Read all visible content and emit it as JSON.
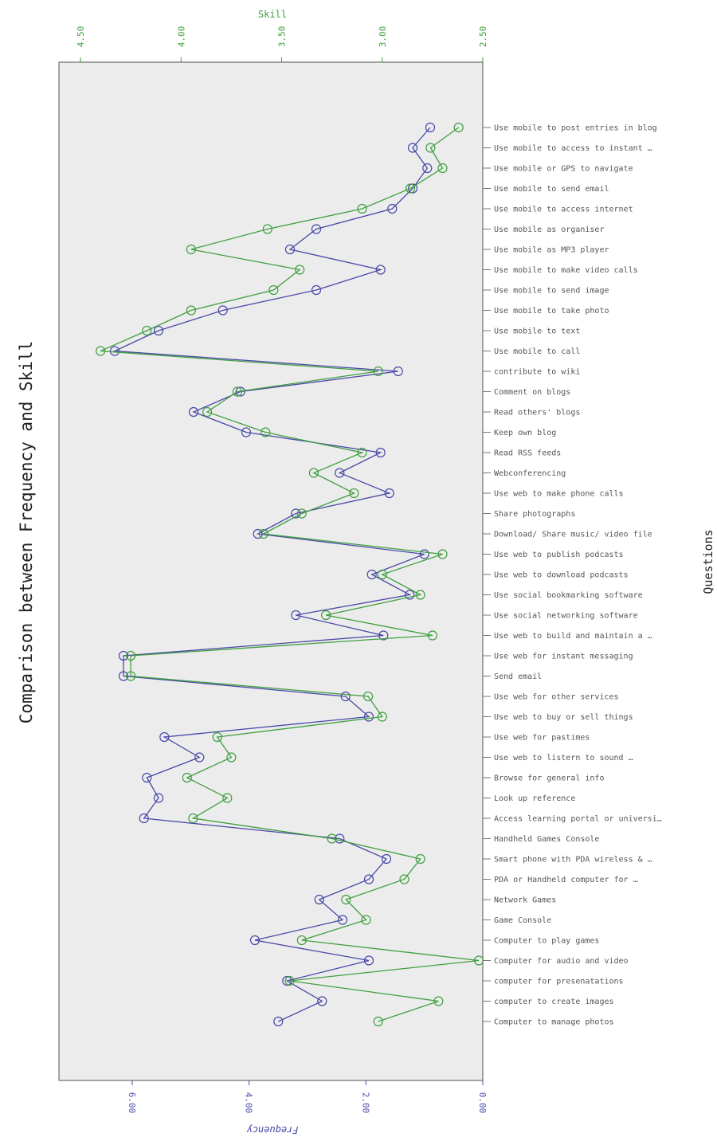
{
  "chart_data": {
    "type": "line",
    "title": "Comparison between Frequency and Skill",
    "category_axis_label": "Questions",
    "categories": [
      "Use mobile to post entries in blog",
      "Use mobile to access to instant …",
      "Use mobile or GPS to navigate",
      "Use mobile to send email",
      "Use mobile to access internet",
      "Use mobile as organiser",
      "Use mobile as MP3 player",
      "Use mobile to make video calls",
      "Use mobile to send image",
      "Use mobile to take photo",
      "Use mobile to text",
      "Use mobile to call",
      "contribute to wiki",
      "Comment on blogs",
      "Read others' blogs",
      "Keep own blog",
      "Read RSS feeds",
      "Webconferencing",
      "Use web to make phone calls",
      "Share photographs",
      "Download/ Share music/ video file",
      "Use web to publish podcasts",
      "Use web to download podcasts",
      "Use social bookmarking software",
      "Use social networking software",
      "Use web to build and maintain a …",
      "Use web for instant messaging",
      "Send email",
      "Use web for other services",
      "Use web to buy or sell things",
      "Use web for pastimes",
      "Use web to listern to sound …",
      "Browse for general info",
      "Look up reference",
      "Access learning portal or universi…",
      "Handheld Games Console",
      "Smart phone with PDA wireless & …",
      "PDA or Handheld computer for …",
      "Network Games",
      "Game Console",
      "Computer to play games",
      "Computer for audio and video",
      "computer for presenatations",
      "computer to create images",
      "Computer to manage photos"
    ],
    "series": [
      {
        "name": "Frequency",
        "axis": "Frequency",
        "color": "#4848a8",
        "values": [
          0.9,
          1.2,
          0.95,
          1.2,
          1.55,
          2.85,
          3.3,
          1.75,
          2.85,
          4.45,
          5.55,
          6.3,
          1.45,
          4.15,
          4.95,
          4.05,
          1.75,
          2.45,
          1.6,
          3.2,
          3.85,
          1.0,
          1.9,
          1.25,
          3.2,
          1.7,
          6.15,
          6.15,
          2.35,
          1.95,
          5.45,
          4.85,
          5.75,
          5.55,
          5.8,
          2.45,
          1.65,
          1.95,
          2.8,
          2.4,
          3.9,
          1.95,
          3.35,
          2.75,
          3.5
        ]
      },
      {
        "name": "Skill",
        "axis": "Skill",
        "color": "#3f9f3f",
        "values": [
          2.62,
          2.76,
          2.7,
          2.86,
          3.1,
          3.57,
          3.95,
          3.41,
          3.54,
          3.95,
          4.17,
          4.4,
          3.02,
          3.72,
          3.87,
          3.58,
          3.1,
          3.34,
          3.14,
          3.4,
          3.59,
          2.7,
          3.0,
          2.81,
          3.28,
          2.75,
          4.25,
          4.25,
          3.07,
          3.0,
          3.82,
          3.75,
          3.97,
          3.77,
          3.94,
          3.25,
          2.81,
          2.89,
          3.18,
          3.08,
          3.4,
          2.52,
          3.46,
          2.72,
          3.02
        ]
      }
    ],
    "skill_axis": {
      "label": "Skill",
      "ticks": [
        "4.50",
        "4.00",
        "3.50",
        "3.00",
        "2.50"
      ],
      "range": [
        4.5,
        2.5
      ]
    },
    "frequency_axis": {
      "label": "Frequency",
      "ticks": [
        "6.00",
        "4.00",
        "2.00",
        "0.00"
      ],
      "range": [
        7.2,
        0
      ]
    },
    "plot_background": "#ececec",
    "grid": false,
    "legend": "none"
  }
}
